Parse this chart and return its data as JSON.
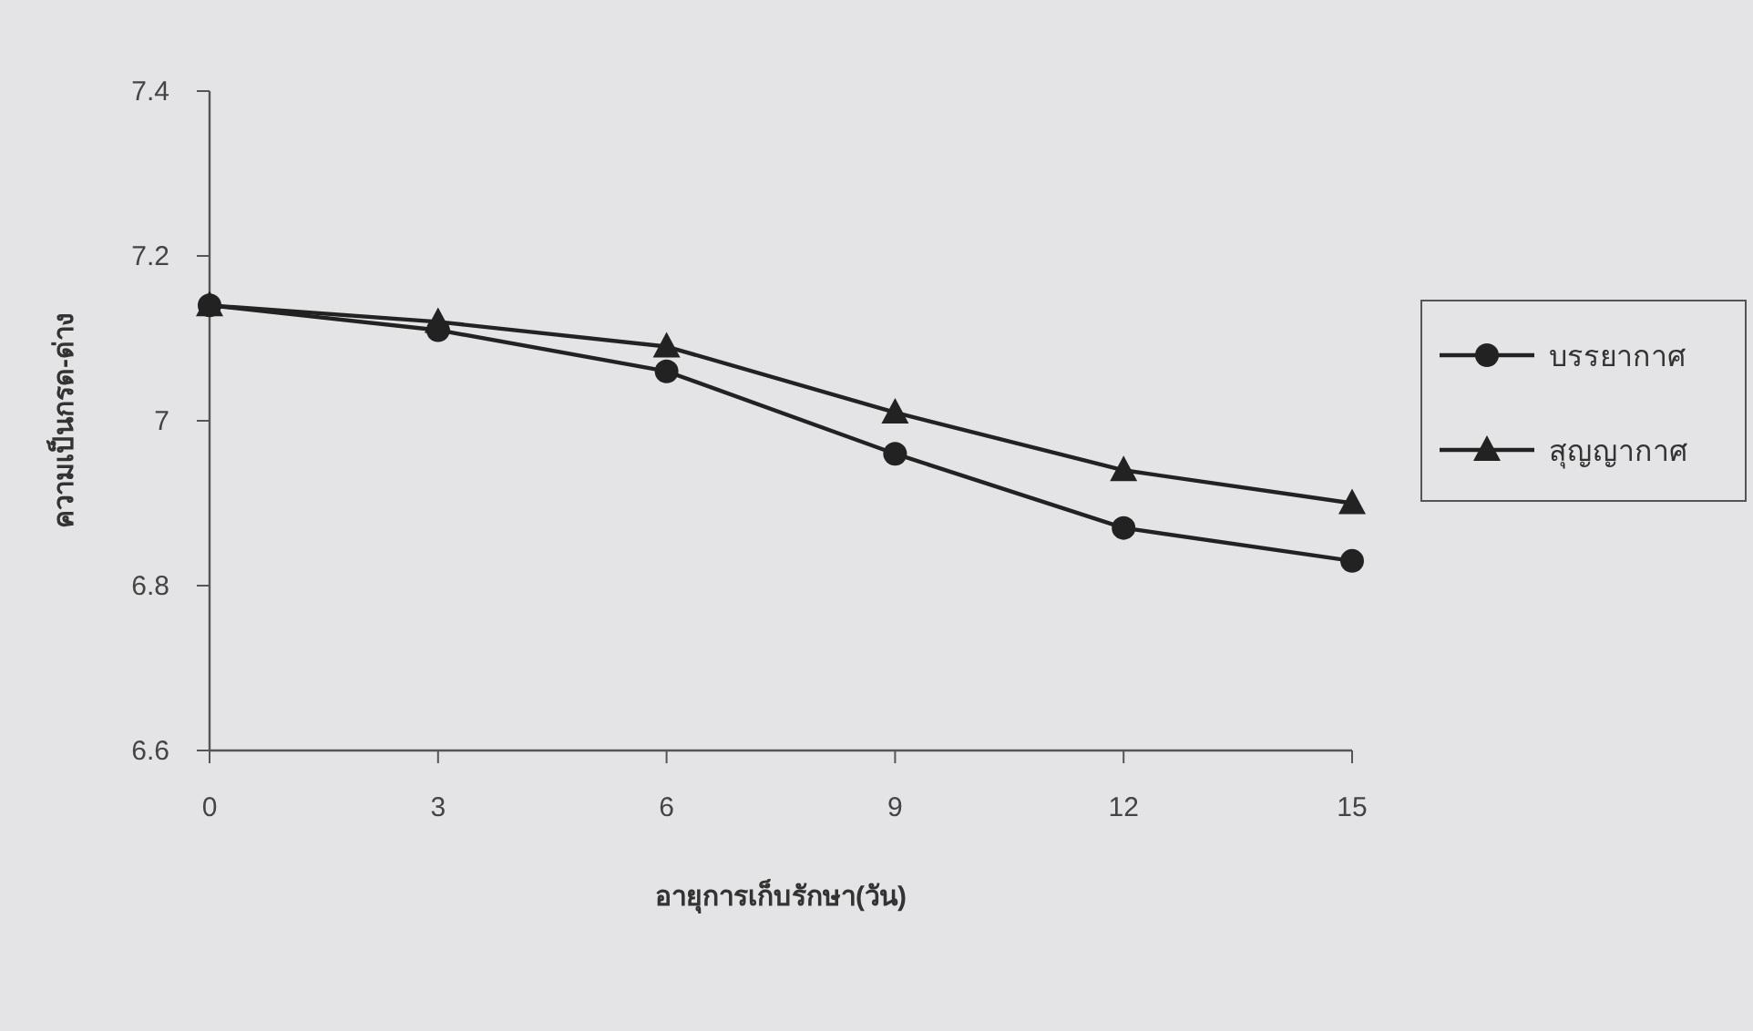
{
  "chart_data": {
    "type": "line",
    "xlabel": "อายุการเก็บรักษา(วัน)",
    "ylabel": "ความเป็นกรด-ด่าง",
    "x": [
      0,
      3,
      6,
      9,
      12,
      15
    ],
    "series": [
      {
        "name": "บรรยากาศ",
        "color": "#222222",
        "marker": "circle",
        "values": [
          7.14,
          7.11,
          7.06,
          6.96,
          6.87,
          6.83
        ]
      },
      {
        "name": "สุญญากาศ",
        "color": "#222222",
        "marker": "triangle",
        "values": [
          7.14,
          7.12,
          7.09,
          7.01,
          6.94,
          6.9
        ]
      }
    ],
    "xlim": [
      0,
      15
    ],
    "xticks": [
      0,
      3,
      6,
      9,
      12,
      15
    ],
    "ylim": [
      6.6,
      7.4
    ],
    "yticks": [
      6.6,
      6.8,
      7,
      7.2,
      7.4
    ],
    "grid": false,
    "legend": "right",
    "line_style": "solid"
  }
}
